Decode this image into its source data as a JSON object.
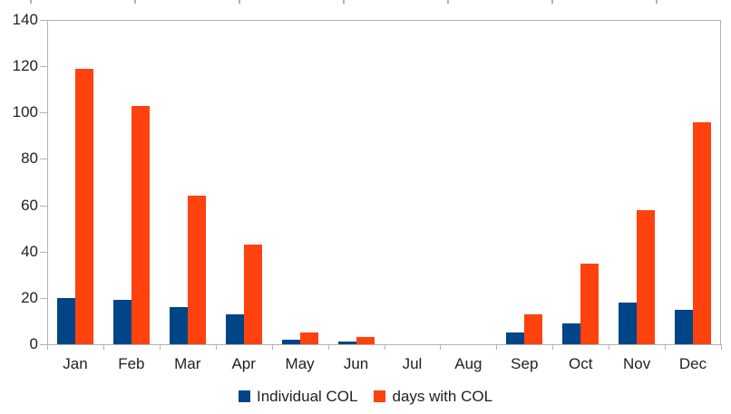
{
  "chart_data": {
    "type": "bar",
    "title": "",
    "xlabel": "",
    "ylabel": "",
    "categories": [
      "Jan",
      "Feb",
      "Mar",
      "Apr",
      "May",
      "Jun",
      "Jul",
      "Aug",
      "Sep",
      "Oct",
      "Nov",
      "Dec"
    ],
    "series": [
      {
        "name": "Individual COL",
        "color": "#004586",
        "values": [
          20,
          19,
          16,
          13,
          2,
          1,
          0,
          0,
          5,
          9,
          18,
          15
        ]
      },
      {
        "name": "days with COL",
        "color": "#ff420e",
        "values": [
          119,
          103,
          64,
          43,
          5,
          3,
          0,
          0,
          13,
          35,
          58,
          96
        ]
      }
    ],
    "ylim": [
      0,
      140
    ],
    "yticks": [
      0,
      20,
      40,
      60,
      80,
      100,
      120,
      140
    ],
    "grid": false,
    "legend_position": "bottom"
  },
  "styles": {
    "axis_border_color": "#b3b3b3",
    "label_color": "#222222",
    "background": "#ffffff"
  },
  "artifacts": {
    "top_edge_tick_xs": [
      33,
      148,
      263,
      378,
      493,
      608,
      723
    ]
  }
}
